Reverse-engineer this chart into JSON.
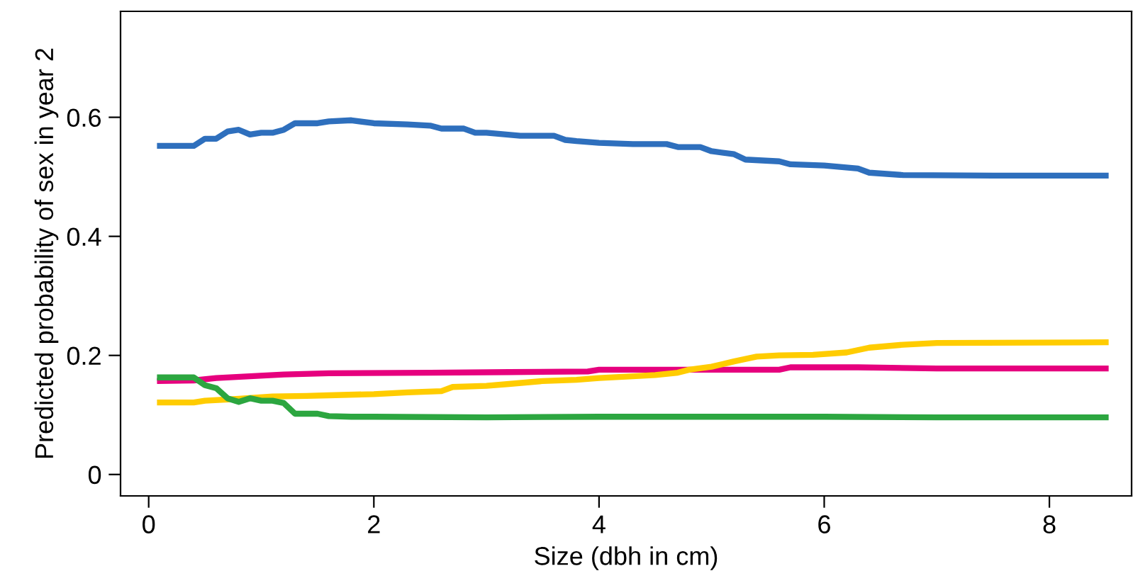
{
  "chart_data": {
    "type": "line",
    "xlabel": "Size (dbh in cm)",
    "ylabel": "Predicted probability of sex in year 2",
    "xlim": [
      -0.25,
      8.73
    ],
    "ylim": [
      -0.036,
      0.778
    ],
    "xticks": [
      0,
      2,
      4,
      6,
      8
    ],
    "yticks": [
      0,
      0.2,
      0.4,
      0.6
    ],
    "marker": "none",
    "line_style": "solid",
    "series": [
      {
        "color": "#2e6fbd",
        "x": [
          0.1,
          0.4,
          0.5,
          0.6,
          0.7,
          0.8,
          0.9,
          1.0,
          1.1,
          1.2,
          1.3,
          1.5,
          1.6,
          1.8,
          2.0,
          2.3,
          2.5,
          2.6,
          2.8,
          2.9,
          3.0,
          3.3,
          3.6,
          3.7,
          3.8,
          4.0,
          4.3,
          4.6,
          4.7,
          4.9,
          5.0,
          5.2,
          5.3,
          5.6,
          5.7,
          6.0,
          6.3,
          6.4,
          6.7,
          7.5,
          8.5
        ],
        "values": [
          0.552,
          0.552,
          0.564,
          0.564,
          0.576,
          0.579,
          0.571,
          0.574,
          0.574,
          0.579,
          0.59,
          0.59,
          0.593,
          0.595,
          0.59,
          0.588,
          0.586,
          0.581,
          0.581,
          0.574,
          0.574,
          0.569,
          0.569,
          0.562,
          0.56,
          0.557,
          0.555,
          0.555,
          0.55,
          0.55,
          0.543,
          0.538,
          0.529,
          0.526,
          0.521,
          0.519,
          0.514,
          0.507,
          0.503,
          0.502,
          0.502
        ]
      },
      {
        "color": "#e6007e",
        "x": [
          0.1,
          0.4,
          0.6,
          0.9,
          1.2,
          1.6,
          2.5,
          3.2,
          3.9,
          4.0,
          5.0,
          5.6,
          5.7,
          6.3,
          7.0,
          8.5
        ],
        "values": [
          0.157,
          0.158,
          0.162,
          0.165,
          0.168,
          0.17,
          0.171,
          0.172,
          0.173,
          0.176,
          0.176,
          0.176,
          0.18,
          0.18,
          0.178,
          0.178
        ]
      },
      {
        "color": "#ffcc00",
        "x": [
          0.1,
          0.4,
          0.5,
          0.8,
          1.1,
          1.4,
          1.6,
          2.0,
          2.3,
          2.6,
          2.7,
          3.0,
          3.2,
          3.5,
          3.8,
          4.0,
          4.3,
          4.5,
          4.7,
          4.8,
          5.0,
          5.2,
          5.4,
          5.6,
          5.9,
          6.2,
          6.4,
          6.7,
          7.0,
          8.5
        ],
        "values": [
          0.121,
          0.121,
          0.124,
          0.127,
          0.131,
          0.132,
          0.133,
          0.135,
          0.138,
          0.14,
          0.147,
          0.149,
          0.152,
          0.157,
          0.159,
          0.162,
          0.165,
          0.167,
          0.171,
          0.176,
          0.181,
          0.19,
          0.198,
          0.2,
          0.201,
          0.205,
          0.213,
          0.218,
          0.221,
          0.222
        ]
      },
      {
        "color": "#2ca640",
        "x": [
          0.1,
          0.4,
          0.5,
          0.6,
          0.7,
          0.8,
          0.9,
          1.0,
          1.1,
          1.2,
          1.3,
          1.5,
          1.6,
          1.8,
          2.0,
          3.0,
          4.0,
          5.0,
          6.0,
          7.0,
          8.5
        ],
        "values": [
          0.163,
          0.163,
          0.15,
          0.145,
          0.128,
          0.122,
          0.128,
          0.124,
          0.124,
          0.12,
          0.102,
          0.102,
          0.098,
          0.097,
          0.097,
          0.096,
          0.097,
          0.097,
          0.097,
          0.096,
          0.096
        ]
      }
    ]
  }
}
